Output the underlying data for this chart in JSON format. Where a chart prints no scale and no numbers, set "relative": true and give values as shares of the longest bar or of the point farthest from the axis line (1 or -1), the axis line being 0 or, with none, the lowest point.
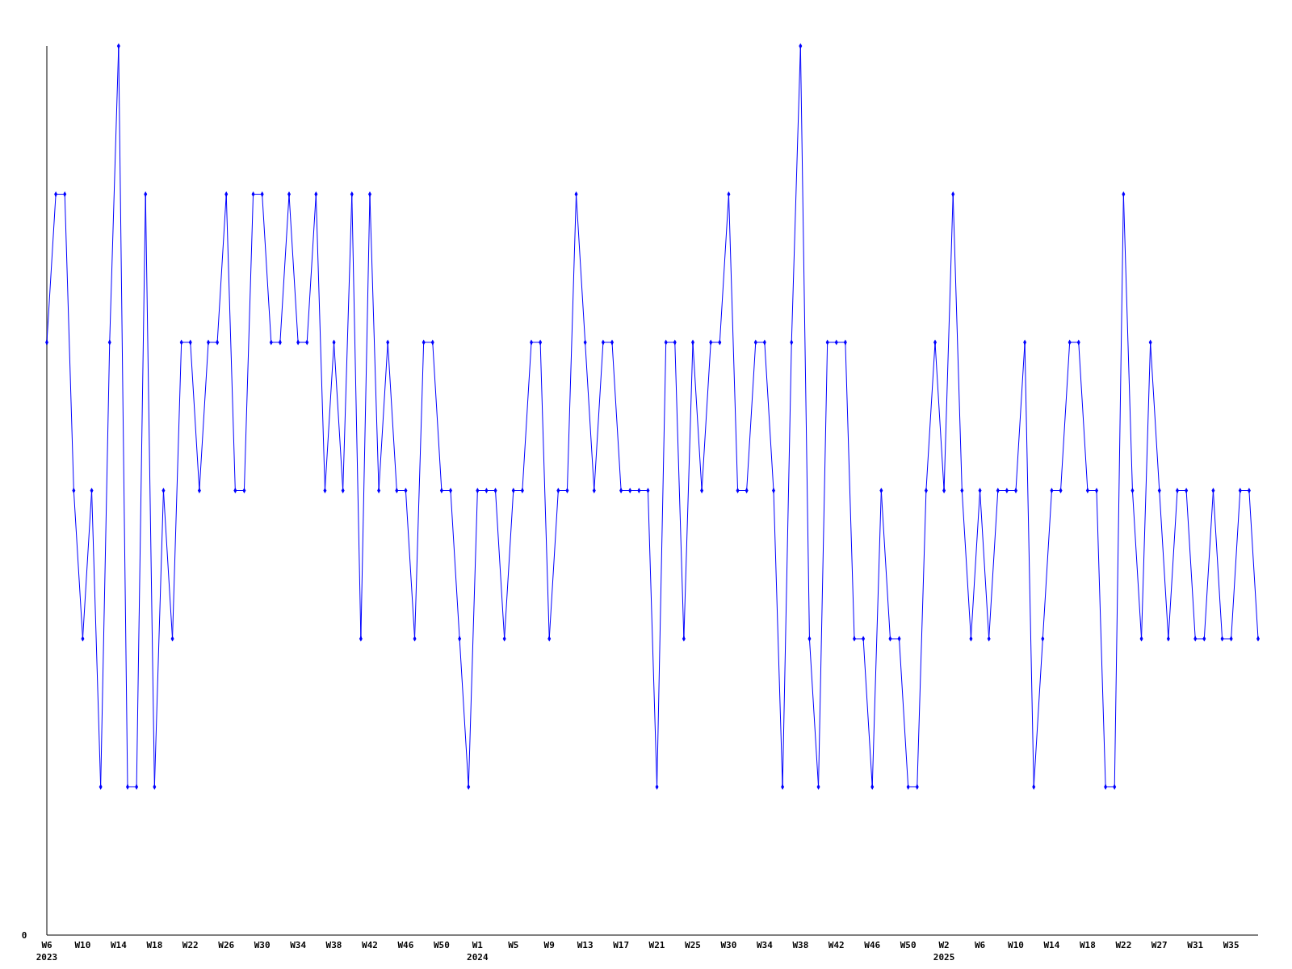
{
  "chart_data": {
    "type": "line",
    "relative": true,
    "annotations": [
      "0"
    ],
    "marker": "diamond",
    "categories": [
      "W6\n2023",
      null,
      null,
      null,
      "W10",
      null,
      null,
      null,
      "W14",
      null,
      null,
      null,
      "W18",
      null,
      null,
      null,
      "W22",
      null,
      null,
      null,
      "W26",
      null,
      null,
      null,
      "W30",
      null,
      null,
      null,
      "W34",
      null,
      null,
      null,
      "W38",
      null,
      null,
      null,
      "W42",
      null,
      null,
      null,
      "W46",
      null,
      null,
      null,
      "W50",
      null,
      null,
      null,
      "W1\n2024",
      null,
      null,
      null,
      "W5",
      null,
      null,
      null,
      "W9",
      null,
      null,
      null,
      "W13",
      null,
      null,
      null,
      "W17",
      null,
      null,
      null,
      "W21",
      null,
      null,
      null,
      "W25",
      null,
      null,
      null,
      "W30",
      null,
      null,
      null,
      "W34",
      null,
      null,
      null,
      "W38",
      null,
      null,
      null,
      "W42",
      null,
      null,
      null,
      "W46",
      null,
      null,
      null,
      "W50",
      null,
      null,
      null,
      "W2\n2025",
      null,
      null,
      null,
      "W6",
      null,
      null,
      null,
      "W10",
      null,
      null,
      null,
      "W14",
      null,
      null,
      null,
      "W18",
      null,
      null,
      null,
      "W22",
      null,
      null,
      null,
      "W27",
      null,
      null,
      null,
      "W31",
      null,
      null,
      null,
      "W35",
      null,
      null,
      null
    ],
    "series": [
      {
        "color": "#0000ff",
        "values": [
          0.6667,
          0.8333,
          0.8333,
          0.5,
          0.3333,
          0.5,
          0.1667,
          0.6667,
          1,
          0.1667,
          0.1667,
          0.8333,
          0.1667,
          0.5,
          0.3333,
          0.6667,
          0.6667,
          0.5,
          0.6667,
          0.6667,
          0.8333,
          0.5,
          0.5,
          0.8333,
          0.8333,
          0.6667,
          0.6667,
          0.8333,
          0.6667,
          0.6667,
          0.8333,
          0.5,
          0.6667,
          0.5,
          0.8333,
          0.3333,
          0.8333,
          0.5,
          0.6667,
          0.5,
          0.5,
          0.3333,
          0.6667,
          0.6667,
          0.5,
          0.5,
          0.3333,
          0.1667,
          0.5,
          0.5,
          0.5,
          0.3333,
          0.5,
          0.5,
          0.6667,
          0.6667,
          0.3333,
          0.5,
          0.5,
          0.8333,
          0.6667,
          0.5,
          0.6667,
          0.6667,
          0.5,
          0.5,
          0.5,
          0.5,
          0.1667,
          0.6667,
          0.6667,
          0.3333,
          0.6667,
          0.5,
          0.6667,
          0.6667,
          0.8333,
          0.5,
          0.5,
          0.6667,
          0.6667,
          0.5,
          0.1667,
          0.6667,
          1,
          0.3333,
          0.1667,
          0.6667,
          0.6667,
          0.6667,
          0.3333,
          0.3333,
          0.1667,
          0.5,
          0.3333,
          0.3333,
          0.1667,
          0.1667,
          0.5,
          0.6667,
          0.5,
          0.8333,
          0.5,
          0.3333,
          0.5,
          0.3333,
          0.5,
          0.5,
          0.5,
          0.6667,
          0.1667,
          0.3333,
          0.5,
          0.5,
          0.6667,
          0.6667,
          0.5,
          0.5,
          0.1667,
          0.1667,
          0.8333,
          0.5,
          0.3333,
          0.6667,
          0.5,
          0.3333,
          0.5,
          0.5,
          0.3333,
          0.3333,
          0.5,
          0.3333,
          0.3333,
          0.5,
          0.5,
          0.3333
        ]
      }
    ]
  }
}
